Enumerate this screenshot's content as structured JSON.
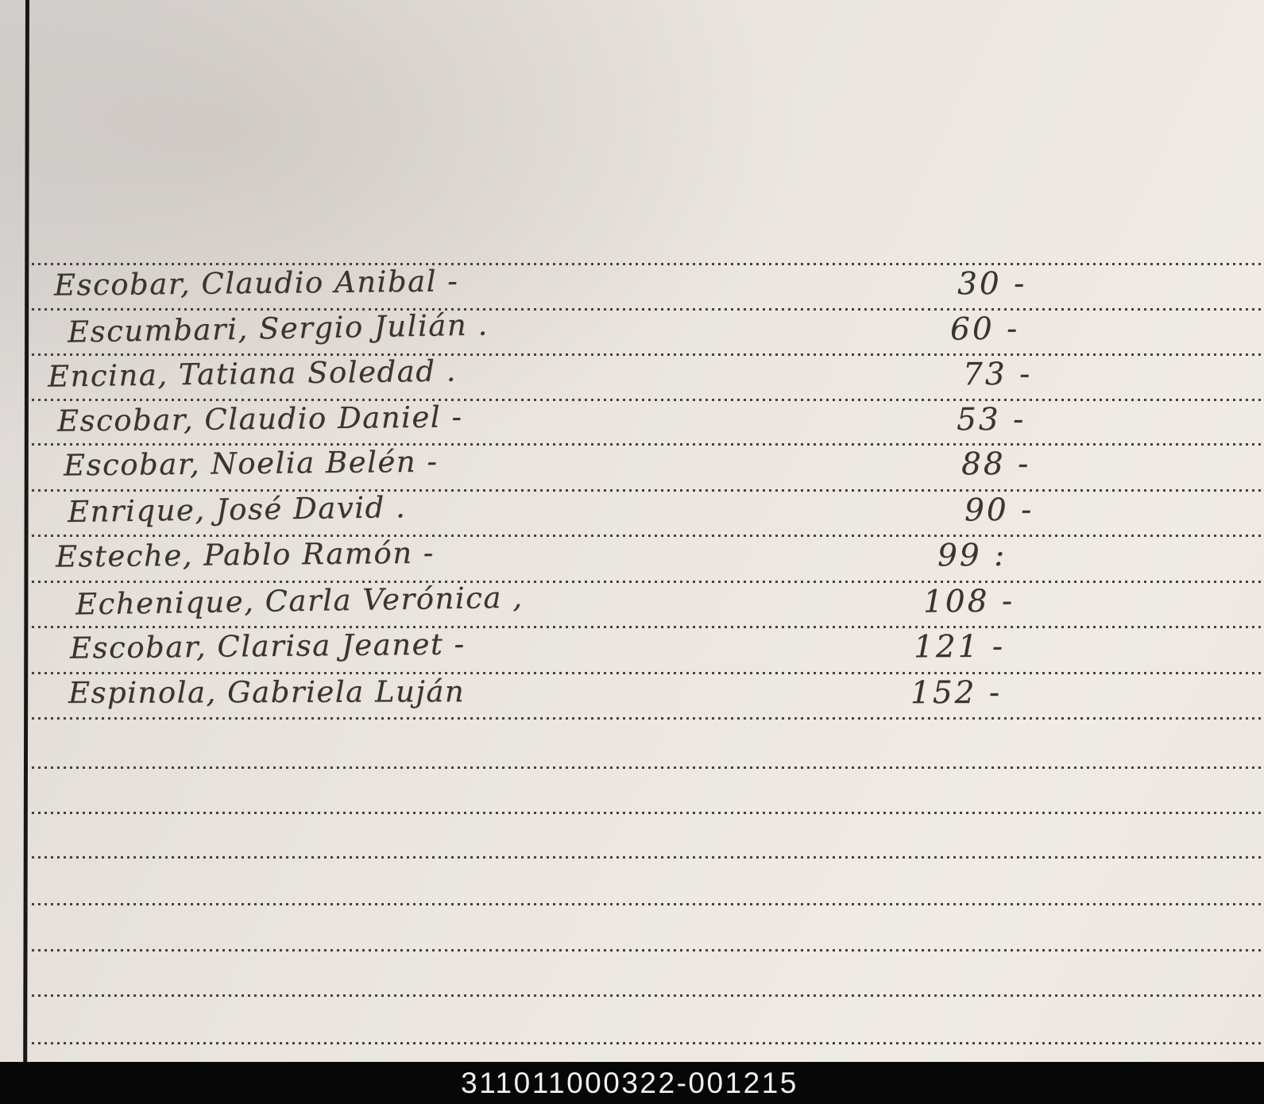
{
  "document": {
    "kind": "handwritten-ledger-page",
    "description": "Photographed notebook page with dotted ruling, left margin line, handwritten list of names with amounts"
  },
  "colors": {
    "paper": "#eae5e1",
    "paper_dark": "#d9d5d2",
    "paper_light": "#efeae6",
    "ink": "#3a342c",
    "rule_dots": "#302b26",
    "margin_line": "#1a1714",
    "footer_bg": "#070707",
    "footer_text": "#f2efec"
  },
  "entries": [
    {
      "name": "Escobar, Claudio Anibal -",
      "amount": "30 -"
    },
    {
      "name": "Escumbari, Sergio Julián .",
      "amount": "60 -"
    },
    {
      "name": "Encina, Tatiana Soledad .",
      "amount": "73 -"
    },
    {
      "name": "Escobar, Claudio Daniel -",
      "amount": "53 -"
    },
    {
      "name": "Escobar, Noelia Belén -",
      "amount": "88 -"
    },
    {
      "name": "Enrique, José David .",
      "amount": "90 -"
    },
    {
      "name": "Esteche, Pablo Ramón -",
      "amount": "99 :"
    },
    {
      "name": "Echenique, Carla Verónica ,",
      "amount": "108 -"
    },
    {
      "name": "Escobar, Clarisa Jeanet -",
      "amount": "121 -"
    },
    {
      "name": "Espinola, Gabriela Luján",
      "amount": "152 -"
    }
  ],
  "footer": {
    "code": "311011000322-001215"
  }
}
